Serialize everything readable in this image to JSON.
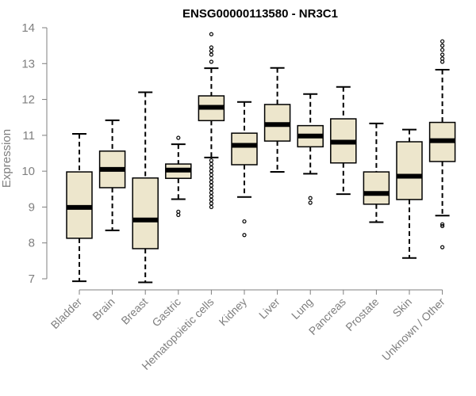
{
  "chart_data": {
    "type": "boxplot",
    "title": "ENSG00000113580 - NR3C1",
    "xlabel": "",
    "ylabel": "Expression",
    "ylim": [
      7,
      14
    ],
    "yticks": [
      "7",
      "8",
      "9",
      "10",
      "11",
      "12",
      "13",
      "14"
    ],
    "box_fill": "#ede6cc",
    "median_color": "#000000",
    "axis_color": "#7f7f7f",
    "categories": [
      "Bladder",
      "Brain",
      "Breast",
      "Gastric",
      "Hematopoietic cells",
      "Kidney",
      "Liver",
      "Lung",
      "Pancreas",
      "Prostate",
      "Skin",
      "Unknown / Other"
    ],
    "boxes": [
      {
        "name": "Bladder",
        "whisker_low": 6.93,
        "q1": 8.13,
        "median": 8.99,
        "q3": 9.98,
        "whisker_high": 11.04,
        "outliers": []
      },
      {
        "name": "Brain",
        "whisker_low": 8.35,
        "q1": 9.54,
        "median": 10.05,
        "q3": 10.56,
        "whisker_high": 11.42,
        "outliers": []
      },
      {
        "name": "Breast",
        "whisker_low": 6.9,
        "q1": 7.84,
        "median": 8.64,
        "q3": 9.81,
        "whisker_high": 12.2,
        "outliers": []
      },
      {
        "name": "Gastric",
        "whisker_low": 9.22,
        "q1": 9.8,
        "median": 10.03,
        "q3": 10.2,
        "whisker_high": 10.75,
        "outliers": [
          10.93,
          8.87,
          8.78
        ]
      },
      {
        "name": "Hematopoietic cells",
        "whisker_low": 10.38,
        "q1": 11.41,
        "median": 11.78,
        "q3": 12.1,
        "whisker_high": 12.87,
        "outliers": [
          13.82,
          13.45,
          13.35,
          13.25,
          13.05,
          10.3,
          10.2,
          10.1,
          10.0,
          9.9,
          9.8,
          9.7,
          9.6,
          9.5,
          9.4,
          9.3,
          9.2,
          9.1,
          9.0
        ]
      },
      {
        "name": "Kidney",
        "whisker_low": 9.28,
        "q1": 10.18,
        "median": 10.72,
        "q3": 11.06,
        "whisker_high": 11.93,
        "outliers": [
          8.6,
          8.22
        ]
      },
      {
        "name": "Liver",
        "whisker_low": 9.98,
        "q1": 10.84,
        "median": 11.3,
        "q3": 11.86,
        "whisker_high": 12.88,
        "outliers": []
      },
      {
        "name": "Lung",
        "whisker_low": 9.93,
        "q1": 10.68,
        "median": 10.98,
        "q3": 11.27,
        "whisker_high": 12.15,
        "outliers": [
          9.25,
          9.12
        ]
      },
      {
        "name": "Pancreas",
        "whisker_low": 9.36,
        "q1": 10.23,
        "median": 10.81,
        "q3": 11.46,
        "whisker_high": 12.35,
        "outliers": []
      },
      {
        "name": "Prostate",
        "whisker_low": 8.58,
        "q1": 9.08,
        "median": 9.38,
        "q3": 9.98,
        "whisker_high": 11.33,
        "outliers": []
      },
      {
        "name": "Skin",
        "whisker_low": 7.58,
        "q1": 9.21,
        "median": 9.86,
        "q3": 10.82,
        "whisker_high": 11.16,
        "outliers": []
      },
      {
        "name": "Unknown / Other",
        "whisker_low": 8.76,
        "q1": 10.27,
        "median": 10.85,
        "q3": 11.36,
        "whisker_high": 12.83,
        "outliers": [
          13.62,
          13.5,
          13.38,
          13.25,
          13.14,
          13.05,
          8.52,
          8.47,
          7.88
        ]
      }
    ]
  }
}
